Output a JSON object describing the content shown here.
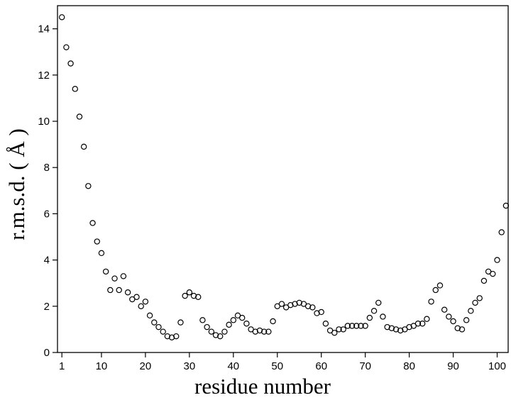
{
  "chart_data": {
    "type": "scatter",
    "xlabel": "residue number",
    "ylabel": "r.m.s.d. ( Å )",
    "xlim": [
      0,
      102.5
    ],
    "ylim": [
      0,
      15
    ],
    "xticks": [
      1,
      10,
      20,
      30,
      40,
      50,
      60,
      70,
      80,
      90,
      100
    ],
    "yticks": [
      0,
      2,
      4,
      6,
      8,
      10,
      12,
      14
    ],
    "grid": false,
    "marker": "open-circle",
    "x": [
      1,
      2,
      3,
      4,
      5,
      6,
      7,
      8,
      9,
      10,
      11,
      12,
      13,
      14,
      15,
      16,
      17,
      18,
      19,
      20,
      21,
      22,
      23,
      24,
      25,
      26,
      27,
      28,
      29,
      30,
      31,
      32,
      33,
      34,
      35,
      36,
      37,
      38,
      39,
      40,
      41,
      42,
      43,
      44,
      45,
      46,
      47,
      48,
      49,
      50,
      51,
      52,
      53,
      54,
      55,
      56,
      57,
      58,
      59,
      60,
      61,
      62,
      63,
      64,
      65,
      66,
      67,
      68,
      69,
      70,
      71,
      72,
      73,
      74,
      75,
      76,
      77,
      78,
      79,
      80,
      81,
      82,
      83,
      84,
      85,
      86,
      87,
      88,
      89,
      90,
      91,
      92,
      93,
      94,
      95,
      96,
      97,
      98,
      99,
      100,
      101,
      102
    ],
    "y": [
      14.5,
      13.2,
      12.5,
      11.4,
      10.2,
      8.9,
      7.2,
      5.6,
      4.8,
      4.3,
      3.5,
      2.7,
      3.2,
      2.7,
      3.3,
      2.6,
      2.3,
      2.4,
      2.0,
      2.2,
      1.6,
      1.3,
      1.1,
      0.9,
      0.7,
      0.65,
      0.7,
      1.3,
      2.45,
      2.6,
      2.45,
      2.4,
      1.4,
      1.1,
      0.9,
      0.75,
      0.7,
      0.9,
      1.2,
      1.4,
      1.6,
      1.5,
      1.25,
      1.0,
      0.9,
      0.95,
      0.9,
      0.9,
      1.35,
      2.0,
      2.1,
      1.95,
      2.05,
      2.1,
      2.15,
      2.1,
      2.0,
      1.95,
      1.7,
      1.75,
      1.25,
      0.95,
      0.85,
      1.0,
      1.0,
      1.15,
      1.15,
      1.15,
      1.15,
      1.15,
      1.5,
      1.8,
      2.15,
      1.55,
      1.1,
      1.05,
      1.0,
      0.95,
      1.0,
      1.1,
      1.15,
      1.25,
      1.25,
      1.45,
      2.2,
      2.7,
      2.9,
      1.85,
      1.55,
      1.35,
      1.05,
      1.0,
      1.4,
      1.8,
      2.15,
      2.35,
      3.1,
      3.5,
      3.4,
      4.0,
      5.2,
      6.35
    ]
  }
}
